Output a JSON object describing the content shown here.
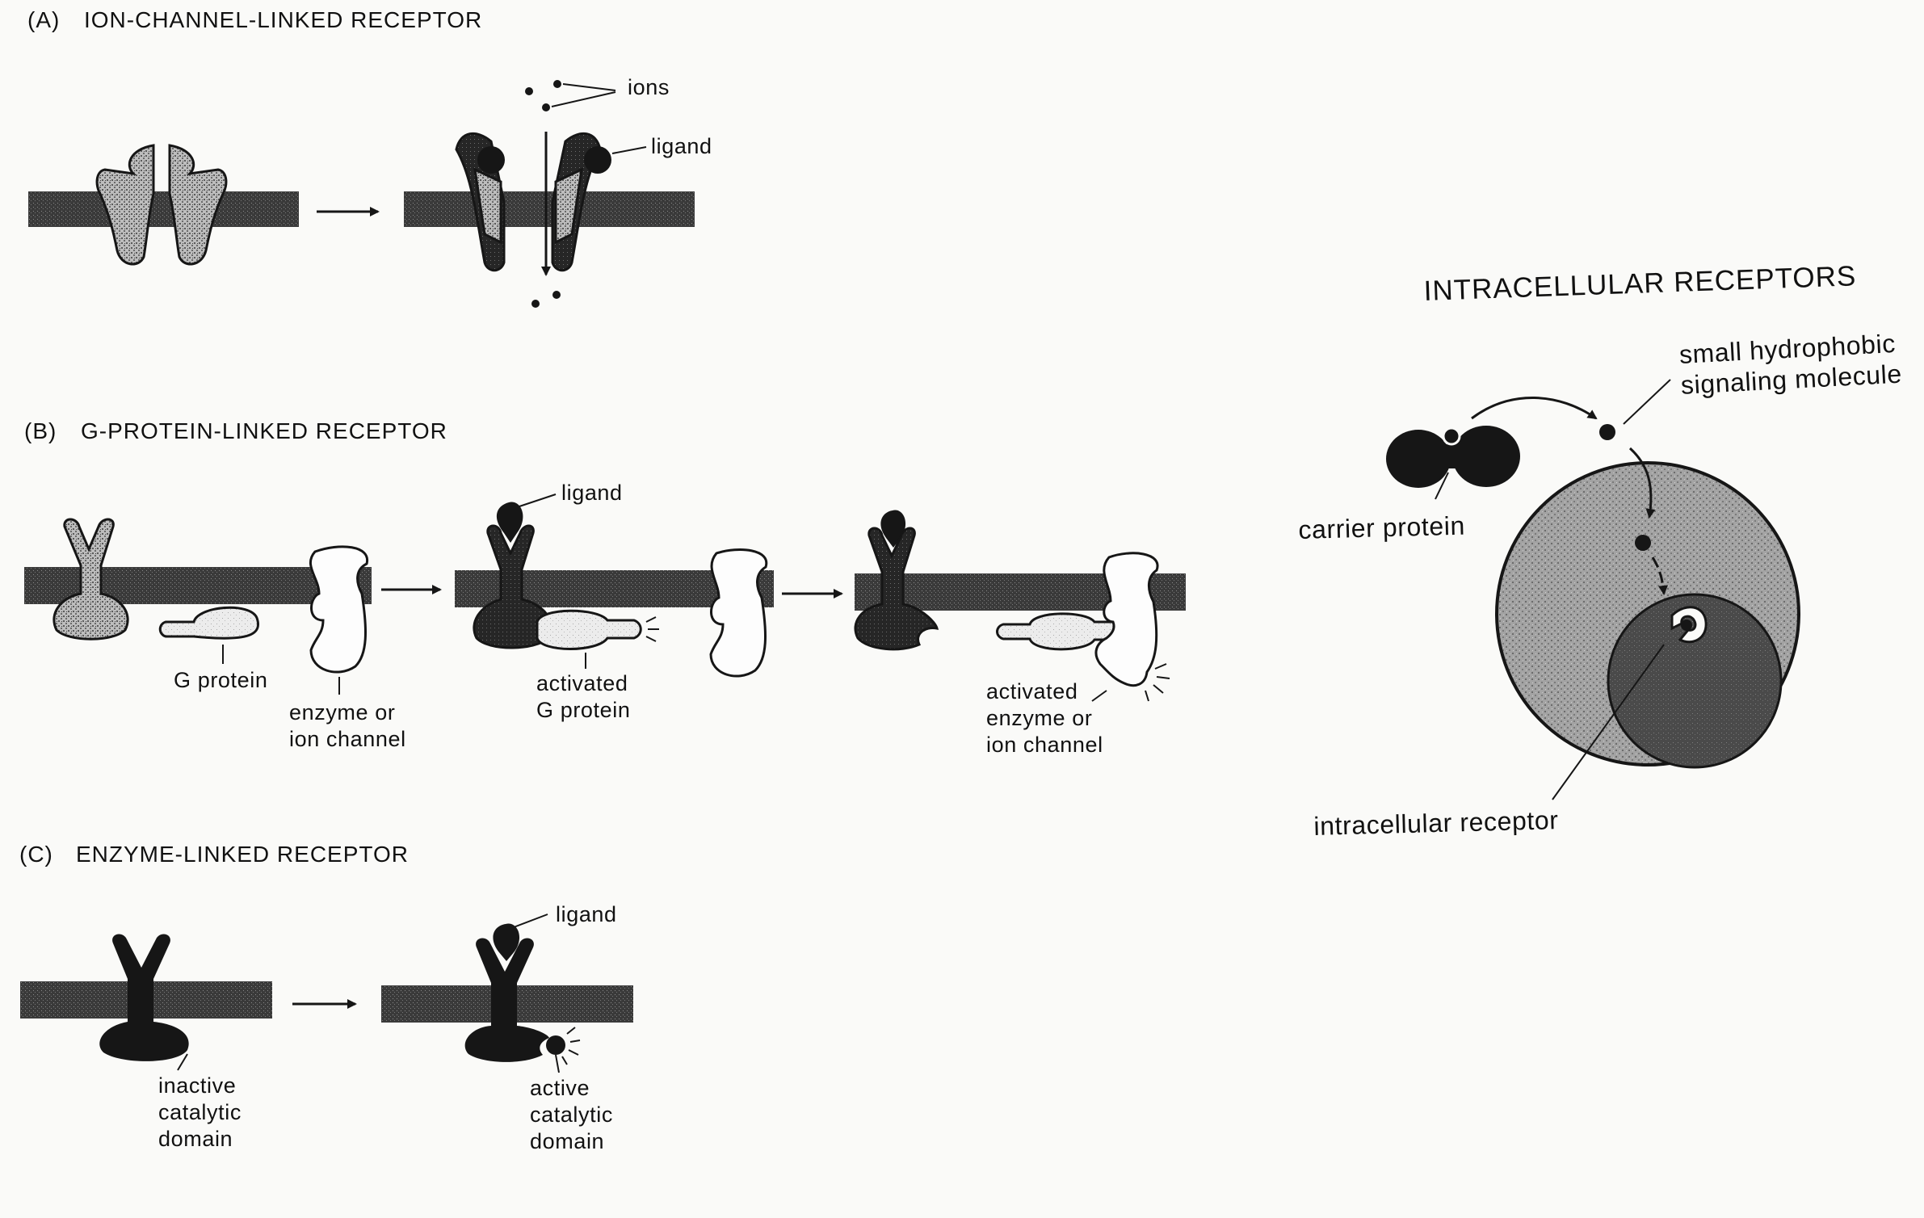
{
  "sections": {
    "a": {
      "tag": "(A)",
      "title": "ION-CHANNEL-LINKED RECEPTOR"
    },
    "b": {
      "tag": "(B)",
      "title": "G-PROTEIN-LINKED RECEPTOR"
    },
    "c": {
      "tag": "(C)",
      "title": "ENZYME-LINKED RECEPTOR"
    },
    "intracellular": {
      "title": "INTRACELLULAR RECEPTORS"
    }
  },
  "labels": {
    "a_ions": "ions",
    "a_ligand": "ligand",
    "b_ligand": "ligand",
    "b_g_protein": "G protein",
    "b_enzyme_line1": "enzyme or",
    "b_enzyme_line2": "ion channel",
    "b_activated_g_line1": "activated",
    "b_activated_g_line2": "G protein",
    "b_activated_enzyme_line1": "activated",
    "b_activated_enzyme_line2": "enzyme or",
    "b_activated_enzyme_line3": "ion channel",
    "c_ligand": "ligand",
    "c_inactive_line1": "inactive",
    "c_inactive_line2": "catalytic",
    "c_inactive_line3": "domain",
    "c_active_line1": "active",
    "c_active_line2": "catalytic",
    "c_active_line3": "domain",
    "i_small_line1": "small hydrophobic",
    "i_small_line2": "signaling molecule",
    "i_carrier": "carrier protein",
    "i_receptor": "intracellular receptor"
  },
  "colors": {
    "ink": "#161616",
    "membrane": "#3c3c3c",
    "stipple": "#8a8a8a",
    "light_fill": "#e4e4e4",
    "cell_fill": "#9a9a9a",
    "nucleus_fill": "#444444",
    "background": "#fafaf8"
  }
}
